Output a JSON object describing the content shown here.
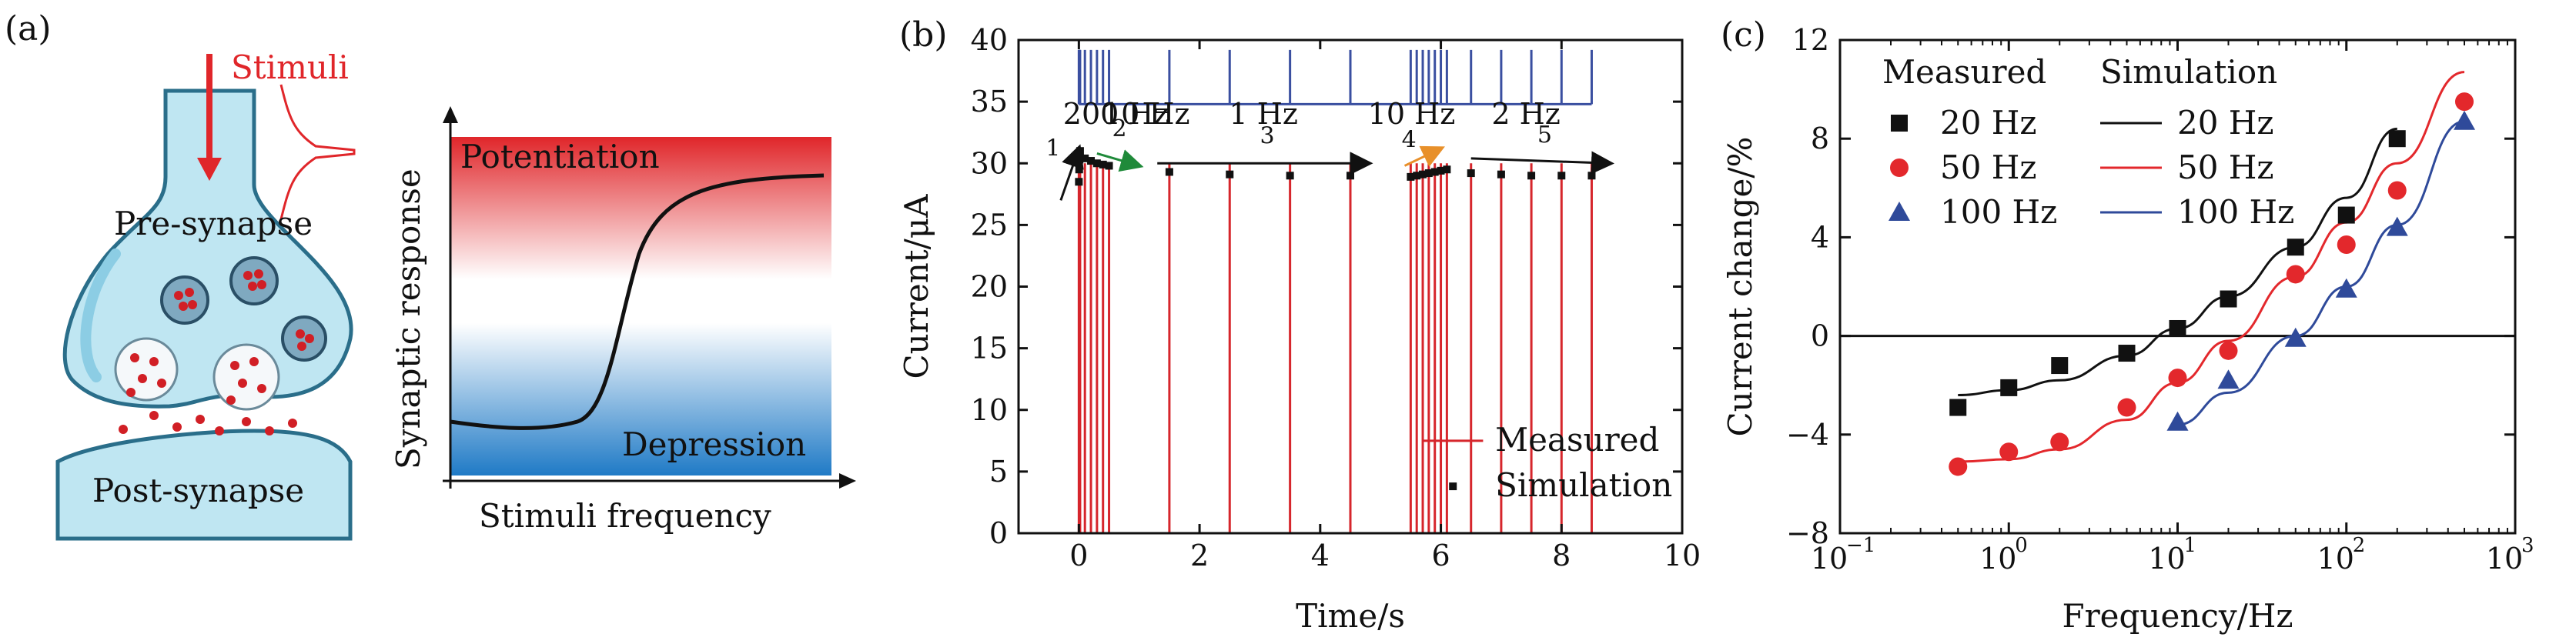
{
  "colors": {
    "measured_b": "#d6262c",
    "sim_b": "#111111",
    "c_20": "#111111",
    "c_50": "#e3282c",
    "c_100": "#2f4a9a",
    "pulse": "#3a4fa0",
    "arrow_green": "#1f8a3a",
    "arrow_orange": "#e8902a",
    "potentiation": "#e02a2a",
    "depression": "#1f7ac6"
  },
  "panel_a": {
    "label": "(a)",
    "stimuli": "Stimuli",
    "pre": "Pre-synapse",
    "post": "Post-synapse",
    "potentiation": "Potentiation",
    "depression": "Depression",
    "ylabel": "Synaptic response",
    "xlabel": "Stimuli frequency"
  },
  "panel_b": {
    "label": "(b)",
    "freq_labels": [
      "200 Hz",
      "10 Hz",
      "1 Hz",
      "10 Hz",
      "2 Hz"
    ],
    "step_labels": [
      "1",
      "2",
      "3",
      "4",
      "5"
    ],
    "legend_measured": "Measured",
    "legend_sim": "Simulation"
  },
  "panel_c": {
    "label": "(c)",
    "measured_header": "Measured",
    "sim_header": "Simulation",
    "freqs": [
      "20 Hz",
      "50 Hz",
      "100 Hz"
    ]
  },
  "chart_data": [
    {
      "type": "line",
      "title": "",
      "xlabel": "Time/s",
      "ylabel": "Current/μA",
      "xlim": [
        -1,
        10
      ],
      "ylim": [
        0,
        40
      ],
      "xticks": [
        0,
        2,
        4,
        6,
        8,
        10
      ],
      "yticks": [
        0,
        5,
        10,
        15,
        20,
        25,
        30,
        35,
        40
      ],
      "series": [
        {
          "name": "Measured",
          "kind": "spikes",
          "x": [
            0,
            0.005,
            0.01,
            0.015,
            0.02,
            0.1,
            0.2,
            0.3,
            0.4,
            0.5,
            1.5,
            2.5,
            3.5,
            4.5,
            5.5,
            5.6,
            5.7,
            5.8,
            5.9,
            6.0,
            6.1,
            6.5,
            7.0,
            7.5,
            8.0,
            8.5
          ],
          "high": 30
        },
        {
          "name": "Simulation",
          "x": [
            0,
            0.005,
            0.01,
            0.015,
            0.02,
            0.1,
            0.2,
            0.3,
            0.4,
            0.5,
            1.5,
            2.5,
            3.5,
            4.5,
            5.5,
            5.6,
            5.7,
            5.8,
            5.9,
            6.0,
            6.1,
            6.5,
            7.0,
            7.5,
            8.0,
            8.5
          ],
          "y": [
            28.5,
            29.5,
            30.3,
            30.8,
            31.0,
            30.4,
            30.2,
            30.0,
            29.9,
            29.8,
            29.3,
            29.1,
            29.0,
            29.0,
            28.9,
            29.0,
            29.1,
            29.2,
            29.3,
            29.4,
            29.5,
            29.2,
            29.1,
            29.0,
            29.0,
            29.0
          ]
        }
      ]
    },
    {
      "type": "scatter",
      "title": "",
      "xlabel": "Frequency/Hz",
      "ylabel": "Current change/%",
      "xscale": "log",
      "xlim": [
        0.1,
        1000
      ],
      "ylim": [
        -8,
        12
      ],
      "xticks": [
        0.1,
        1,
        10,
        100,
        1000
      ],
      "xtick_labels": [
        "10",
        "10",
        "10",
        "10",
        "10"
      ],
      "xtick_exps": [
        "−1",
        "0",
        "1",
        "2",
        "3"
      ],
      "yticks": [
        -8,
        -4,
        0,
        4,
        8,
        12
      ],
      "ytick_labels": [
        "−8",
        "−4",
        "0",
        "4",
        "8",
        "12"
      ],
      "series": [
        {
          "name": "20 Hz",
          "marker": "square",
          "x": [
            0.5,
            1,
            2,
            5,
            10,
            20,
            50,
            100,
            200
          ],
          "y": [
            -2.9,
            -2.1,
            -1.2,
            -0.7,
            0.3,
            1.5,
            3.6,
            4.9,
            8.0
          ]
        },
        {
          "name": "50 Hz",
          "marker": "circle",
          "x": [
            0.5,
            1,
            2,
            5,
            10,
            20,
            50,
            100,
            200,
            500
          ],
          "y": [
            -5.3,
            -4.7,
            -4.3,
            -2.9,
            -1.7,
            -0.6,
            2.5,
            3.7,
            5.9,
            9.5
          ]
        },
        {
          "name": "100 Hz",
          "marker": "triangle",
          "x": [
            10,
            20,
            50,
            100,
            200,
            500
          ],
          "y": [
            -3.5,
            -1.8,
            -0.1,
            1.9,
            4.4,
            8.7
          ]
        }
      ],
      "fits": [
        {
          "name": "20 Hz",
          "x": [
            0.5,
            1,
            2,
            5,
            10,
            20,
            50,
            100,
            200
          ],
          "y": [
            -2.4,
            -2.2,
            -1.8,
            -0.8,
            0.3,
            1.6,
            3.6,
            5.6,
            8.4
          ]
        },
        {
          "name": "50 Hz",
          "x": [
            0.5,
            1,
            2,
            5,
            10,
            20,
            50,
            100,
            200,
            500
          ],
          "y": [
            -5.1,
            -5.0,
            -4.6,
            -3.4,
            -1.9,
            -0.2,
            2.4,
            4.6,
            7.0,
            10.7
          ]
        },
        {
          "name": "100 Hz",
          "x": [
            10,
            20,
            50,
            100,
            200,
            500
          ],
          "y": [
            -3.6,
            -2.3,
            0.0,
            2.0,
            4.5,
            8.7
          ]
        }
      ]
    }
  ]
}
